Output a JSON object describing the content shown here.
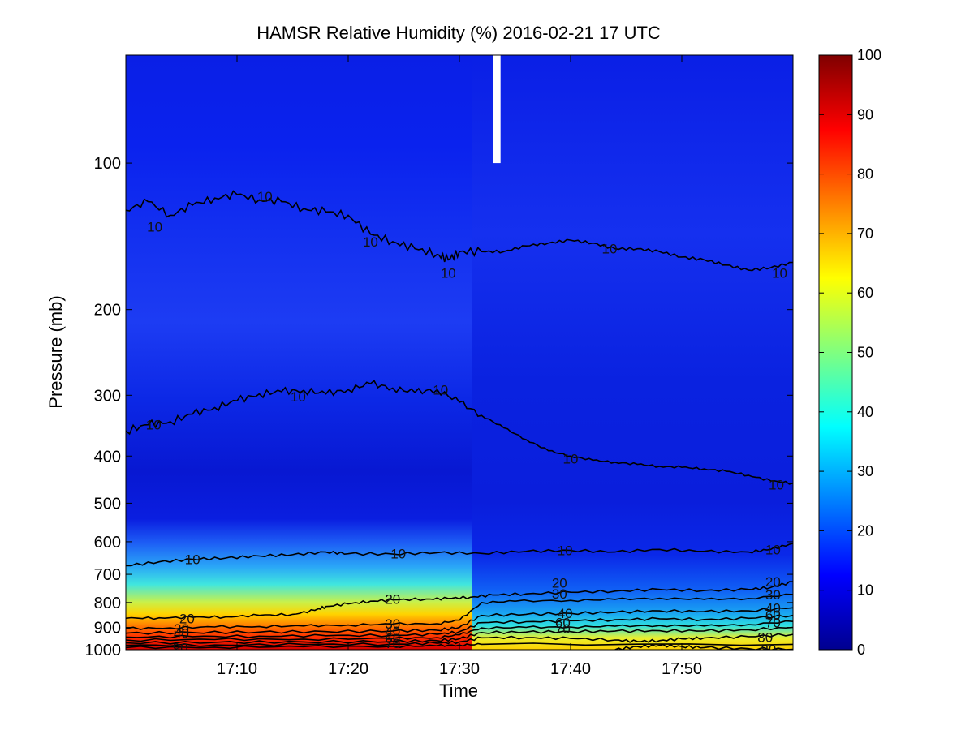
{
  "chart_data": {
    "type": "heatmap",
    "title": "HAMSR  Relative Humidity (%) 2016-02-21 17 UTC",
    "xlabel": "Time",
    "ylabel": "Pressure (mb)",
    "x_range": [
      "17:00",
      "18:00"
    ],
    "x_ticks": [
      {
        "label": "17:10",
        "minutes": 10
      },
      {
        "label": "17:20",
        "minutes": 20
      },
      {
        "label": "17:30",
        "minutes": 30
      },
      {
        "label": "17:40",
        "minutes": 40
      },
      {
        "label": "17:50",
        "minutes": 50
      }
    ],
    "y_scale": "log",
    "y_reversed": true,
    "y_range": [
      1000,
      60
    ],
    "y_ticks": [
      100,
      200,
      300,
      400,
      500,
      600,
      700,
      800,
      900,
      1000
    ],
    "colorbar": {
      "colormap": "jet",
      "range": [
        0,
        100
      ],
      "ticks": [
        0,
        10,
        20,
        30,
        40,
        50,
        60,
        70,
        80,
        90,
        100
      ],
      "colors": [
        "#00008f",
        "#0000ff",
        "#007fff",
        "#00ffff",
        "#7fff7f",
        "#ffff00",
        "#ff7f00",
        "#ff0000",
        "#7f0000"
      ]
    },
    "data_gap": {
      "minutes_range": [
        33,
        33.7
      ],
      "pressure_range": [
        60,
        100
      ]
    },
    "contour_levels": [
      10,
      20,
      30,
      40,
      50,
      60,
      70,
      80,
      90
    ],
    "contours": [
      {
        "level": 10,
        "label": "10",
        "points": [
          [
            0,
            125
          ],
          [
            2,
            120
          ],
          [
            4,
            128
          ],
          [
            6,
            122
          ],
          [
            8,
            118
          ],
          [
            10,
            116
          ],
          [
            12,
            119
          ],
          [
            14,
            120
          ],
          [
            16,
            124
          ],
          [
            18,
            126
          ],
          [
            20,
            128
          ],
          [
            22,
            140
          ],
          [
            24,
            145
          ],
          [
            26,
            150
          ],
          [
            28,
            154
          ],
          [
            29,
            158
          ],
          [
            30,
            152
          ],
          [
            32,
            152
          ],
          [
            34,
            152
          ],
          [
            36,
            148
          ],
          [
            38,
            146
          ],
          [
            40,
            144
          ],
          [
            42,
            146
          ],
          [
            44,
            150
          ],
          [
            46,
            150
          ],
          [
            48,
            152
          ],
          [
            50,
            156
          ],
          [
            52,
            158
          ],
          [
            54,
            162
          ],
          [
            56,
            166
          ],
          [
            58,
            164
          ],
          [
            60,
            160
          ]
        ]
      },
      {
        "level": 10,
        "label": "10",
        "points": [
          [
            0,
            355
          ],
          [
            2,
            345
          ],
          [
            4,
            340
          ],
          [
            6,
            328
          ],
          [
            8,
            318
          ],
          [
            10,
            308
          ],
          [
            12,
            298
          ],
          [
            14,
            295
          ],
          [
            16,
            293
          ],
          [
            18,
            298
          ],
          [
            20,
            292
          ],
          [
            22,
            284
          ],
          [
            24,
            290
          ],
          [
            26,
            296
          ],
          [
            28,
            292
          ],
          [
            30,
            310
          ],
          [
            32,
            330
          ],
          [
            34,
            350
          ],
          [
            36,
            370
          ],
          [
            38,
            390
          ],
          [
            40,
            400
          ],
          [
            42,
            408
          ],
          [
            44,
            412
          ],
          [
            46,
            416
          ],
          [
            48,
            420
          ],
          [
            50,
            422
          ],
          [
            52,
            425
          ],
          [
            54,
            430
          ],
          [
            56,
            438
          ],
          [
            58,
            450
          ],
          [
            60,
            455
          ]
        ]
      },
      {
        "level": 10,
        "label": "10",
        "points": [
          [
            0,
            672
          ],
          [
            3,
            660
          ],
          [
            6,
            652
          ],
          [
            9,
            648
          ],
          [
            12,
            642
          ],
          [
            15,
            638
          ],
          [
            18,
            630
          ],
          [
            20,
            635
          ],
          [
            24,
            636
          ],
          [
            28,
            632
          ],
          [
            32,
            634
          ],
          [
            36,
            628
          ],
          [
            40,
            625
          ],
          [
            44,
            630
          ],
          [
            48,
            622
          ],
          [
            52,
            628
          ],
          [
            56,
            630
          ],
          [
            58,
            622
          ],
          [
            60,
            605
          ]
        ]
      },
      {
        "level": 20,
        "label": "20",
        "points": [
          [
            0,
            862
          ],
          [
            3,
            860
          ],
          [
            6,
            858
          ],
          [
            9,
            856
          ],
          [
            12,
            850
          ],
          [
            15,
            846
          ],
          [
            17,
            830
          ],
          [
            18,
            815
          ],
          [
            20,
            805
          ],
          [
            22,
            795
          ],
          [
            24,
            790
          ],
          [
            27,
            787
          ],
          [
            29,
            785
          ],
          [
            31,
            780
          ],
          [
            33,
            772
          ],
          [
            36,
            768
          ],
          [
            40,
            762
          ],
          [
            44,
            758
          ],
          [
            48,
            752
          ],
          [
            52,
            756
          ],
          [
            56,
            752
          ],
          [
            58,
            745
          ],
          [
            60,
            725
          ]
        ]
      },
      {
        "level": 30,
        "label": "30",
        "points": [
          [
            0,
            905
          ],
          [
            4,
            902
          ],
          [
            8,
            898
          ],
          [
            12,
            896
          ],
          [
            16,
            894
          ],
          [
            20,
            890
          ],
          [
            24,
            886
          ],
          [
            28,
            884
          ],
          [
            30,
            870
          ],
          [
            32,
            800
          ],
          [
            35,
            795
          ],
          [
            40,
            792
          ],
          [
            44,
            788
          ],
          [
            48,
            784
          ],
          [
            52,
            788
          ],
          [
            56,
            785
          ],
          [
            60,
            770
          ]
        ]
      },
      {
        "level": 40,
        "label": "40",
        "points": [
          [
            0,
            925
          ],
          [
            6,
            922
          ],
          [
            12,
            920
          ],
          [
            18,
            918
          ],
          [
            24,
            915
          ],
          [
            28,
            912
          ],
          [
            30,
            900
          ],
          [
            32,
            850
          ],
          [
            36,
            846
          ],
          [
            40,
            842
          ],
          [
            44,
            838
          ],
          [
            48,
            832
          ],
          [
            52,
            835
          ],
          [
            56,
            832
          ],
          [
            60,
            820
          ]
        ]
      },
      {
        "level": 50,
        "label": "",
        "points": [
          [
            0,
            942
          ],
          [
            6,
            940
          ],
          [
            12,
            938
          ],
          [
            18,
            936
          ],
          [
            24,
            934
          ],
          [
            28,
            930
          ],
          [
            30,
            918
          ],
          [
            32,
            880
          ],
          [
            36,
            876
          ],
          [
            40,
            872
          ],
          [
            44,
            868
          ],
          [
            48,
            864
          ],
          [
            52,
            867
          ],
          [
            56,
            862
          ],
          [
            60,
            850
          ]
        ]
      },
      {
        "level": 60,
        "label": "60",
        "points": [
          [
            0,
            955
          ],
          [
            8,
            953
          ],
          [
            16,
            951
          ],
          [
            24,
            948
          ],
          [
            28,
            944
          ],
          [
            30,
            932
          ],
          [
            32,
            902
          ],
          [
            36,
            900
          ],
          [
            40,
            898
          ],
          [
            44,
            895
          ],
          [
            48,
            892
          ],
          [
            52,
            894
          ],
          [
            56,
            888
          ],
          [
            60,
            875
          ]
        ]
      },
      {
        "level": 70,
        "label": "70",
        "points": [
          [
            0,
            968
          ],
          [
            8,
            966
          ],
          [
            16,
            964
          ],
          [
            24,
            962
          ],
          [
            28,
            958
          ],
          [
            30,
            950
          ],
          [
            32,
            922
          ],
          [
            36,
            920
          ],
          [
            40,
            918
          ],
          [
            44,
            916
          ],
          [
            48,
            914
          ],
          [
            52,
            915
          ],
          [
            56,
            910
          ],
          [
            60,
            900
          ]
        ]
      },
      {
        "level": 80,
        "label": "80",
        "points": [
          [
            0,
            980
          ],
          [
            8,
            978
          ],
          [
            16,
            976
          ],
          [
            24,
            974
          ],
          [
            28,
            970
          ],
          [
            30,
            964
          ],
          [
            32,
            945
          ],
          [
            36,
            944
          ],
          [
            40,
            948
          ],
          [
            44,
            955
          ],
          [
            46,
            962
          ],
          [
            48,
            958
          ],
          [
            50,
            950
          ],
          [
            52,
            946
          ],
          [
            56,
            940
          ],
          [
            60,
            930
          ]
        ]
      },
      {
        "level": 90,
        "label": "90",
        "points": [
          [
            0,
            990
          ],
          [
            8,
            988
          ],
          [
            16,
            986
          ],
          [
            24,
            984
          ],
          [
            28,
            982
          ],
          [
            30,
            978
          ],
          [
            32,
            975
          ],
          [
            60,
            975
          ]
        ]
      },
      {
        "level": 80,
        "label": "80",
        "points": [
          [
            44,
            1000
          ],
          [
            46,
            985
          ],
          [
            48,
            980
          ],
          [
            50,
            985
          ],
          [
            52,
            990
          ],
          [
            56,
            995
          ],
          [
            60,
            998
          ]
        ]
      }
    ],
    "contour_label_positions": [
      {
        "text": "10",
        "minutes": 2.6,
        "pressure": 135
      },
      {
        "text": "10",
        "minutes": 12.5,
        "pressure": 117
      },
      {
        "text": "10",
        "minutes": 22,
        "pressure": 145
      },
      {
        "text": "10",
        "minutes": 29,
        "pressure": 168
      },
      {
        "text": "10",
        "minutes": 43.5,
        "pressure": 150
      },
      {
        "text": "10",
        "minutes": 58.8,
        "pressure": 168
      },
      {
        "text": "10",
        "minutes": 2.5,
        "pressure": 345
      },
      {
        "text": "10",
        "minutes": 15.5,
        "pressure": 302
      },
      {
        "text": "10",
        "minutes": 28.3,
        "pressure": 292
      },
      {
        "text": "10",
        "minutes": 40,
        "pressure": 405
      },
      {
        "text": "10",
        "minutes": 58.5,
        "pressure": 458
      },
      {
        "text": "10",
        "minutes": 6,
        "pressure": 652
      },
      {
        "text": "10",
        "minutes": 24.5,
        "pressure": 635
      },
      {
        "text": "10",
        "minutes": 39.5,
        "pressure": 625
      },
      {
        "text": "10",
        "minutes": 58.2,
        "pressure": 622
      },
      {
        "text": "20",
        "minutes": 5.5,
        "pressure": 862
      },
      {
        "text": "20",
        "minutes": 24,
        "pressure": 787
      },
      {
        "text": "20",
        "minutes": 39,
        "pressure": 728
      },
      {
        "text": "20",
        "minutes": 58.2,
        "pressure": 725
      },
      {
        "text": "30",
        "minutes": 5,
        "pressure": 905
      },
      {
        "text": "30",
        "minutes": 24,
        "pressure": 885
      },
      {
        "text": "30",
        "minutes": 39,
        "pressure": 768
      },
      {
        "text": "30",
        "minutes": 58.2,
        "pressure": 770
      },
      {
        "text": "40",
        "minutes": 5,
        "pressure": 925
      },
      {
        "text": "40",
        "minutes": 24,
        "pressure": 915
      },
      {
        "text": "40",
        "minutes": 39.5,
        "pressure": 842
      },
      {
        "text": "40",
        "minutes": 58.2,
        "pressure": 820
      },
      {
        "text": "60",
        "minutes": 24,
        "pressure": 948
      },
      {
        "text": "60",
        "minutes": 39.3,
        "pressure": 880
      },
      {
        "text": "60",
        "minutes": 58.2,
        "pressure": 848
      },
      {
        "text": "70",
        "minutes": 24,
        "pressure": 970
      },
      {
        "text": "70",
        "minutes": 39.3,
        "pressure": 905
      },
      {
        "text": "70",
        "minutes": 58.2,
        "pressure": 880
      },
      {
        "text": "80",
        "minutes": 57.5,
        "pressure": 942
      },
      {
        "text": "80",
        "minutes": 57.8,
        "pressure": 998
      },
      {
        "text": "90",
        "minutes": 4.9,
        "pressure": 990
      }
    ],
    "grid": false,
    "legend": "colorbar-right"
  }
}
